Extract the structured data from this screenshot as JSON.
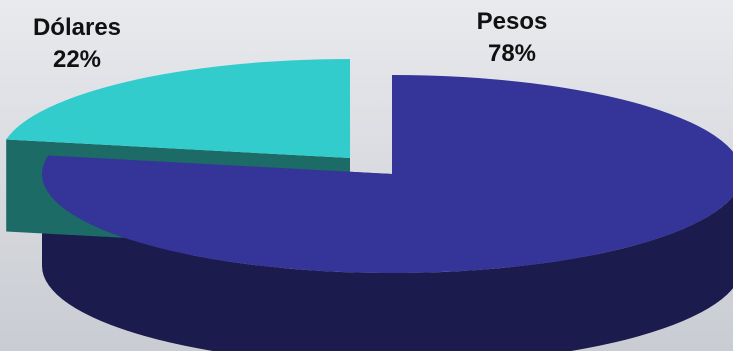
{
  "chart_data": {
    "type": "pie",
    "style": "3d-exploded",
    "categories": [
      "Pesos",
      "Dólares"
    ],
    "values": [
      78,
      22
    ],
    "value_labels": [
      "78%",
      "22%"
    ],
    "colors": {
      "Pesos": {
        "top": "#343499",
        "side": "#1c1b4e"
      },
      "Dólares": {
        "top": "#33cccc",
        "side": "#1c6b66"
      }
    },
    "legend": "none"
  }
}
